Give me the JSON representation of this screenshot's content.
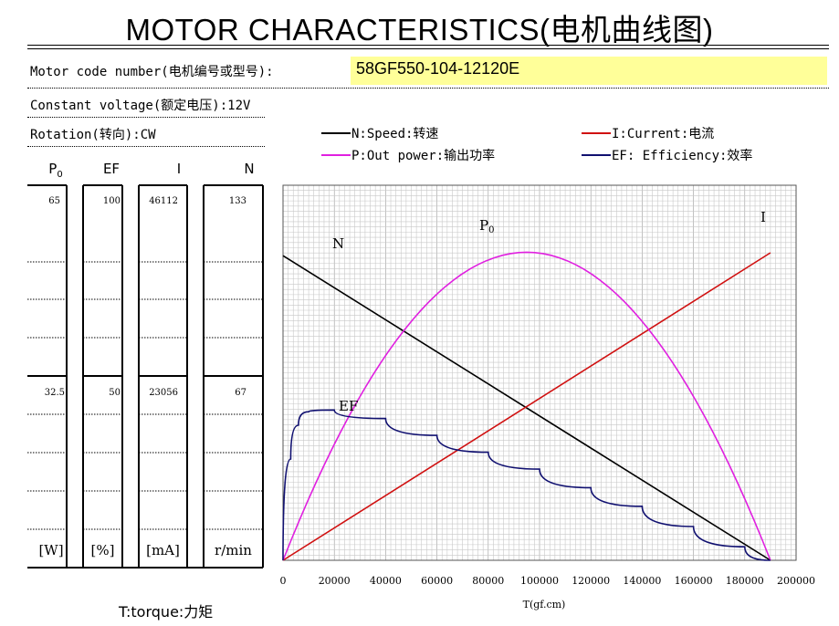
{
  "title": "MOTOR CHARACTERISTICS(电机曲线图)",
  "motor_code_label": "Motor code number(电机编号或型号):",
  "motor_code_value": "58GF550-104-12120E",
  "voltage_label": "Constant voltage(额定电压):12V",
  "rotation_label": "Rotation(转向):CW",
  "legend": {
    "speed": "N:Speed:转速",
    "power": "P:Out power:输出功率",
    "current": "I:Current:电流",
    "efficiency": "EF: Efficiency:效率"
  },
  "columns": [
    {
      "header": "P",
      "header_sub": "0",
      "top": "65",
      "mid": "32.5",
      "unit": "[W]"
    },
    {
      "header": "EF",
      "header_sub": "",
      "top": "100",
      "mid": "50",
      "unit": "[%]"
    },
    {
      "header": "I",
      "header_sub": "",
      "top": "46112",
      "mid": "23056",
      "unit": "[mA]"
    },
    {
      "header": "N",
      "header_sub": "",
      "top": "133",
      "mid": "67",
      "unit": "r/min"
    }
  ],
  "torque_label": "T:torque:力矩",
  "colors": {
    "speed": "#000000",
    "power": "#e020e0",
    "current": "#d01010",
    "efficiency": "#101070",
    "code_highlight": "#ffff99"
  },
  "chart_data": {
    "type": "line",
    "xlabel": "T(gf.cm)",
    "xlim": [
      0,
      200000
    ],
    "x_ticks": [
      "0",
      "20000",
      "40000",
      "60000",
      "80000",
      "100000",
      "120000",
      "140000",
      "160000",
      "180000",
      "200000"
    ],
    "grid": true,
    "curve_labels": {
      "speed": "N",
      "power": "P",
      "power_sub": "0",
      "current": "I",
      "efficiency": "EF"
    },
    "stall_torque": 190000,
    "series": [
      {
        "name": "N:Speed:转速",
        "key": "speed",
        "unit": "r/min",
        "scale_max": 133,
        "x": [
          0,
          190000
        ],
        "y": [
          120,
          0
        ]
      },
      {
        "name": "I:Current:电流",
        "key": "current",
        "unit": "mA",
        "scale_max": 46112,
        "x": [
          0,
          190000
        ],
        "y": [
          0,
          42000
        ]
      },
      {
        "name": "P:Out power:输出功率",
        "key": "power",
        "unit": "W",
        "scale_max": 65,
        "x": [
          0,
          19000,
          38000,
          57000,
          76000,
          95000,
          114000,
          133000,
          152000,
          171000,
          190000
        ],
        "y": [
          0,
          21.3,
          37.9,
          49.8,
          56.9,
          59.3,
          56.9,
          49.8,
          37.9,
          21.3,
          0
        ]
      },
      {
        "name": "EF: Efficiency:效率",
        "key": "efficiency",
        "unit": "%",
        "scale_max": 100,
        "x": [
          0,
          3000,
          6000,
          10000,
          20000,
          40000,
          60000,
          80000,
          100000,
          120000,
          140000,
          160000,
          180000,
          190000
        ],
        "y": [
          0,
          30,
          40,
          44,
          44.5,
          42,
          37,
          32,
          27,
          21.5,
          16,
          10,
          4,
          0
        ]
      }
    ]
  }
}
